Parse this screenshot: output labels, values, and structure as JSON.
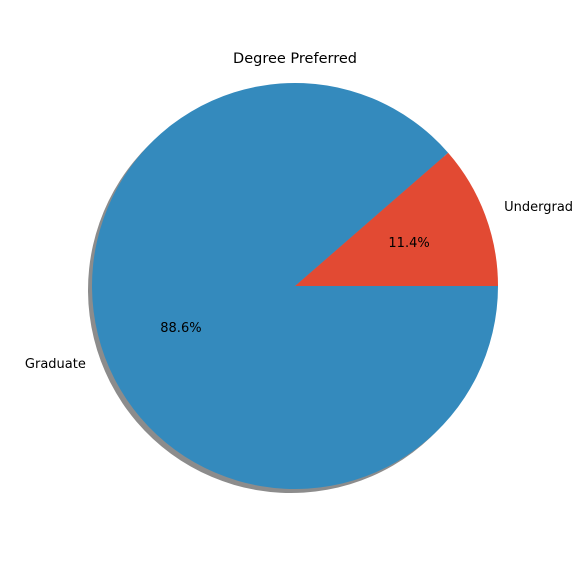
{
  "chart_data": {
    "type": "pie",
    "title": "Degree Preferred",
    "slices": [
      {
        "label": "Undergrad",
        "value": 11.4,
        "pct_label": "11.4%",
        "color": "#E24A33"
      },
      {
        "label": "Graduate",
        "value": 88.6,
        "pct_label": "88.6%",
        "color": "#348ABD"
      }
    ],
    "start_angle_deg": 0,
    "direction": "counterclockwise",
    "shadow": true,
    "legend": "none"
  }
}
